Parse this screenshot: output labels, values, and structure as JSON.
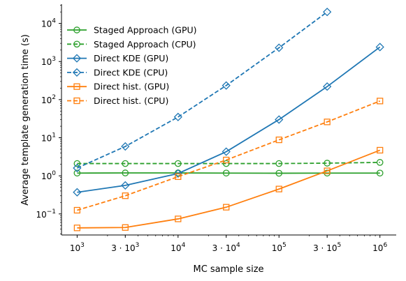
{
  "chart_data": {
    "type": "line",
    "x_scale": "log",
    "y_scale": "log",
    "xlabel": "MC sample size",
    "ylabel": "Average template generation time (s)",
    "x": [
      1000,
      3000,
      10000,
      30000,
      100000,
      300000,
      1000000
    ],
    "x_tick_labels": [
      {
        "base": "10",
        "exp": "3"
      },
      {
        "base": "3 · 10",
        "exp": "3"
      },
      {
        "base": "10",
        "exp": "4"
      },
      {
        "base": "3 · 10",
        "exp": "4"
      },
      {
        "base": "10",
        "exp": "5"
      },
      {
        "base": "3 · 10",
        "exp": "5"
      },
      {
        "base": "10",
        "exp": "6"
      }
    ],
    "y_tick_labels": [
      {
        "value": 0.1,
        "base": "10",
        "exp": "−1"
      },
      {
        "value": 1,
        "base": "10",
        "exp": "0"
      },
      {
        "value": 10,
        "base": "10",
        "exp": "1"
      },
      {
        "value": 100,
        "base": "10",
        "exp": "2"
      },
      {
        "value": 1000,
        "base": "10",
        "exp": "3"
      },
      {
        "value": 10000,
        "base": "10",
        "exp": "4"
      }
    ],
    "xlim": [
      700,
      1450000
    ],
    "ylim": [
      0.028,
      32000
    ],
    "grid": false,
    "legend_position": "top-left",
    "series": [
      {
        "name": "Staged Approach (GPU)",
        "color": "#2ca02c",
        "dashed": false,
        "marker": "circle",
        "values": [
          1.18,
          1.19,
          1.19,
          1.18,
          1.17,
          1.18,
          1.18
        ]
      },
      {
        "name": "Staged Approach (CPU)",
        "color": "#2ca02c",
        "dashed": true,
        "marker": "circle",
        "values": [
          2.1,
          2.1,
          2.1,
          2.1,
          2.1,
          2.15,
          2.25
        ]
      },
      {
        "name": "Direct KDE (GPU)",
        "color": "#1f77b4",
        "dashed": false,
        "marker": "diamond",
        "values": [
          0.37,
          0.56,
          1.15,
          4.3,
          30,
          220,
          2400
        ]
      },
      {
        "name": "Direct KDE (CPU)",
        "color": "#1f77b4",
        "dashed": true,
        "marker": "diamond",
        "values": [
          1.6,
          5.9,
          35,
          235,
          2300,
          20000,
          null
        ]
      },
      {
        "name": "Direct hist. (GPU)",
        "color": "#ff7f0e",
        "dashed": false,
        "marker": "square",
        "values": [
          0.043,
          0.044,
          0.074,
          0.15,
          0.45,
          1.35,
          4.7
        ]
      },
      {
        "name": "Direct hist. (CPU)",
        "color": "#ff7f0e",
        "dashed": true,
        "marker": "square",
        "values": [
          0.125,
          0.3,
          0.95,
          2.6,
          8.8,
          26,
          92
        ]
      }
    ]
  }
}
